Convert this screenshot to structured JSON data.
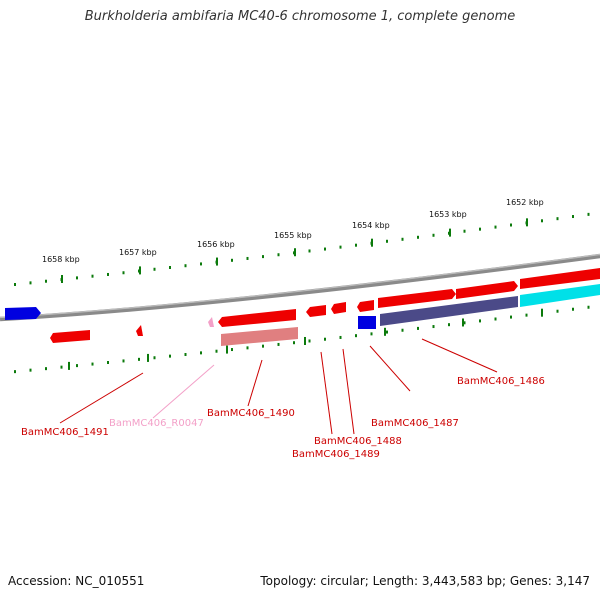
{
  "title": "Burkholderia ambifaria MC40-6 chromosome 1, complete genome",
  "footer": {
    "accession": "Accession: NC_010551",
    "summary": "Topology: circular; Length: 3,443,583 bp; Genes: 3,147"
  },
  "colors": {
    "backbone": "#808080",
    "ticks": "#0b7a0b",
    "gene_forward": "#ee0000",
    "gene_reverse": "#0000e0",
    "gene_label": "#cc0000",
    "rna": "#f3a0c8",
    "pseudo": "#e07f80",
    "cds_forward": "#00e0e8",
    "cds_reverse": "#4b4a88"
  },
  "scale_labels": [
    "1658 kbp",
    "1657 kbp",
    "1656 kbp",
    "1655 kbp",
    "1654 kbp",
    "1653 kbp",
    "1652 kbp"
  ],
  "gene_labels": [
    {
      "text": "BamMC406_1491",
      "kind": "gene"
    },
    {
      "text": "BamMC406_R0047",
      "kind": "rna"
    },
    {
      "text": "BamMC406_1490",
      "kind": "gene"
    },
    {
      "text": "BamMC406_1488",
      "kind": "gene"
    },
    {
      "text": "BamMC406_1489",
      "kind": "gene"
    },
    {
      "text": "BamMC406_1487",
      "kind": "gene"
    },
    {
      "text": "BamMC406_1486",
      "kind": "gene"
    }
  ]
}
